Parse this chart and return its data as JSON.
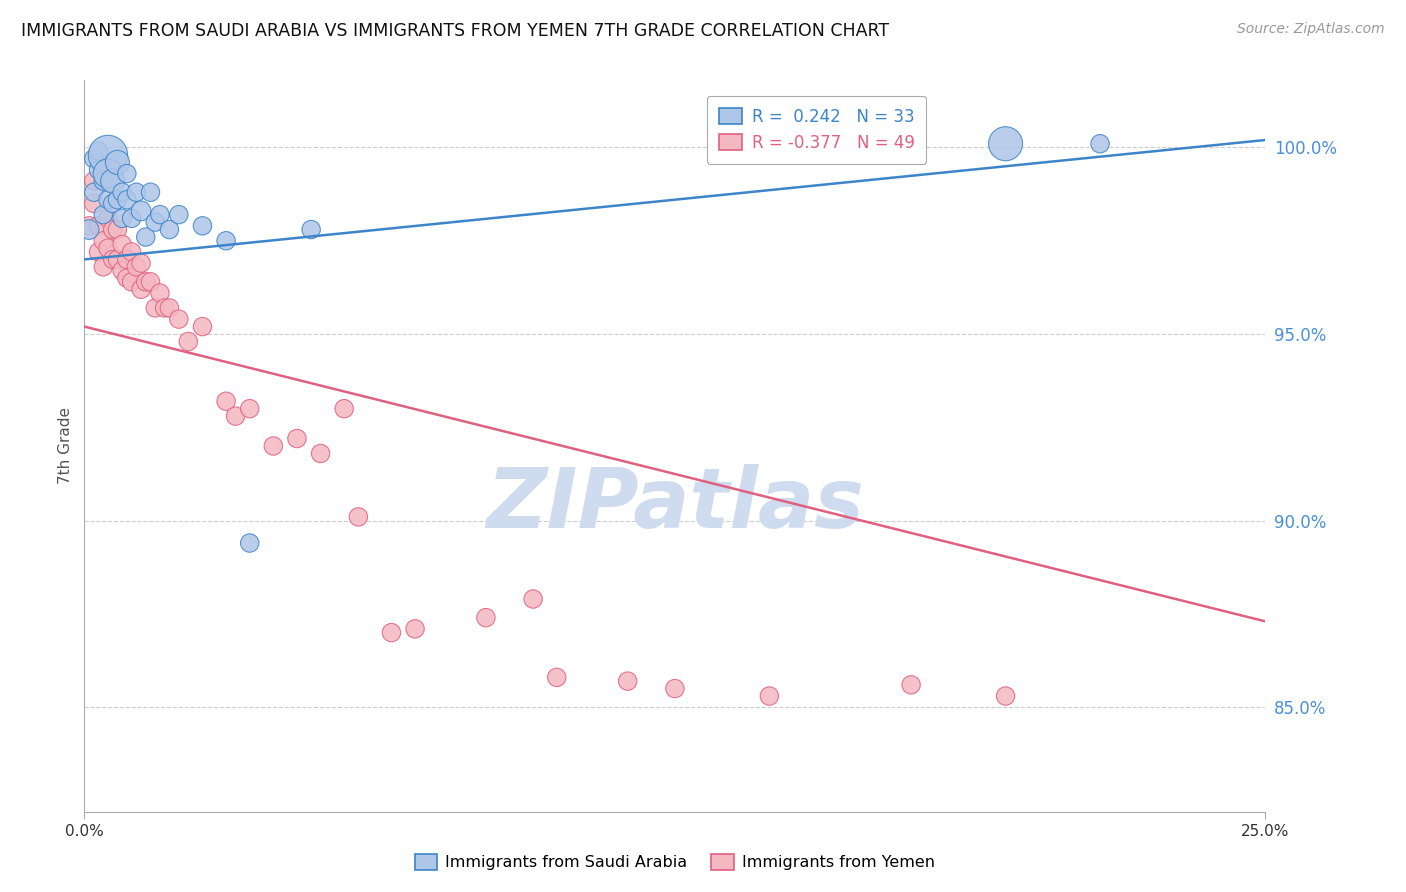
{
  "title": "IMMIGRANTS FROM SAUDI ARABIA VS IMMIGRANTS FROM YEMEN 7TH GRADE CORRELATION CHART",
  "source": "Source: ZipAtlas.com",
  "ylabel": "7th Grade",
  "ytick_labels": [
    "85.0%",
    "90.0%",
    "95.0%",
    "100.0%"
  ],
  "ytick_values": [
    0.85,
    0.9,
    0.95,
    1.0
  ],
  "xmin": 0.0,
  "xmax": 0.25,
  "ymin": 0.822,
  "ymax": 1.018,
  "blue_color": "#aec6e8",
  "pink_color": "#f4b8c1",
  "blue_line_color": "#3d85c8",
  "pink_line_color": "#e06080",
  "blue_label": "Immigrants from Saudi Arabia",
  "pink_label": "Immigrants from Yemen",
  "watermark": "ZIPatlas",
  "watermark_color": "#cfdcf0",
  "blue_line_x0": 0.0,
  "blue_line_y0": 0.97,
  "blue_line_x1": 0.25,
  "blue_line_y1": 1.002,
  "pink_line_x0": 0.0,
  "pink_line_y0": 0.952,
  "pink_line_x1": 0.25,
  "pink_line_y1": 0.873,
  "blue_scatter_x": [
    0.001,
    0.002,
    0.002,
    0.003,
    0.003,
    0.004,
    0.004,
    0.005,
    0.005,
    0.005,
    0.006,
    0.006,
    0.007,
    0.007,
    0.008,
    0.008,
    0.009,
    0.009,
    0.01,
    0.011,
    0.012,
    0.013,
    0.014,
    0.015,
    0.016,
    0.018,
    0.02,
    0.025,
    0.03,
    0.035,
    0.048,
    0.195,
    0.215
  ],
  "blue_scatter_y": [
    0.978,
    0.997,
    0.988,
    0.994,
    0.999,
    0.991,
    0.982,
    0.998,
    0.993,
    0.986,
    0.991,
    0.985,
    0.996,
    0.986,
    0.988,
    0.981,
    0.993,
    0.986,
    0.981,
    0.988,
    0.983,
    0.976,
    0.988,
    0.98,
    0.982,
    0.978,
    0.982,
    0.979,
    0.975,
    0.894,
    0.978,
    1.001,
    1.001
  ],
  "blue_scatter_size": [
    40,
    35,
    35,
    35,
    35,
    35,
    35,
    160,
    90,
    35,
    60,
    35,
    60,
    35,
    35,
    35,
    35,
    35,
    35,
    35,
    40,
    35,
    35,
    35,
    35,
    35,
    35,
    35,
    35,
    35,
    35,
    120,
    35
  ],
  "pink_scatter_x": [
    0.001,
    0.002,
    0.002,
    0.003,
    0.003,
    0.004,
    0.004,
    0.005,
    0.005,
    0.006,
    0.006,
    0.007,
    0.007,
    0.008,
    0.008,
    0.009,
    0.009,
    0.01,
    0.01,
    0.011,
    0.012,
    0.012,
    0.013,
    0.014,
    0.015,
    0.016,
    0.017,
    0.018,
    0.02,
    0.022,
    0.025,
    0.03,
    0.032,
    0.035,
    0.04,
    0.045,
    0.05,
    0.055,
    0.058,
    0.065,
    0.07,
    0.085,
    0.095,
    0.1,
    0.115,
    0.125,
    0.145,
    0.175,
    0.195
  ],
  "pink_scatter_y": [
    0.979,
    0.991,
    0.985,
    0.979,
    0.972,
    0.975,
    0.968,
    0.981,
    0.973,
    0.978,
    0.97,
    0.978,
    0.97,
    0.974,
    0.967,
    0.97,
    0.965,
    0.972,
    0.964,
    0.968,
    0.969,
    0.962,
    0.964,
    0.964,
    0.957,
    0.961,
    0.957,
    0.957,
    0.954,
    0.948,
    0.952,
    0.932,
    0.928,
    0.93,
    0.92,
    0.922,
    0.918,
    0.93,
    0.901,
    0.87,
    0.871,
    0.874,
    0.879,
    0.858,
    0.857,
    0.855,
    0.853,
    0.856,
    0.853
  ],
  "pink_scatter_size": [
    35,
    35,
    35,
    35,
    35,
    35,
    35,
    35,
    35,
    35,
    35,
    35,
    35,
    35,
    35,
    35,
    35,
    35,
    35,
    35,
    35,
    35,
    35,
    35,
    35,
    35,
    35,
    35,
    35,
    35,
    35,
    35,
    35,
    35,
    35,
    35,
    35,
    35,
    35,
    35,
    35,
    35,
    35,
    35,
    35,
    35,
    35,
    35,
    35
  ]
}
